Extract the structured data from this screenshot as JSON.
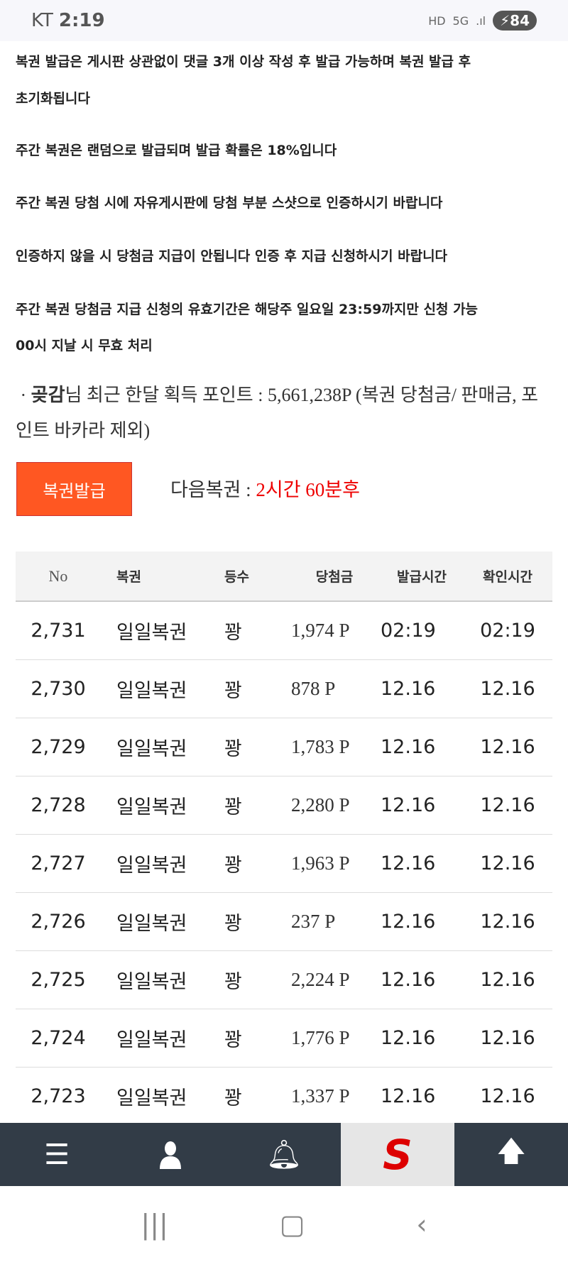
{
  "status_bar": {
    "carrier": "KT",
    "time": "2:19",
    "icons": [
      "hd-icon",
      "5g-icon",
      "signal-icon"
    ],
    "battery": "84"
  },
  "notices": [
    "복권 발급은 게시판 상관없이 댓글 3개 이상 작성 후 발급 가능하며 복권 발급 후",
    "초기화됩니다",
    "주간 복권은 랜덤으로 발급되며 발급 확률은 18%입니다",
    "주간 복권 당첨 시에 자유게시판에 당첨 부분 스샷으로 인증하시기 바랍니다",
    "인증하지 않을 시 당첨금 지급이 안됩니다 인증 후 지급 신청하시기 바랍니다",
    "주간 복권 당첨금 지급 신청의 유효기간은 해당주 일요일 23:59까지만 신청 가능",
    "00시 지날 시 무효 처리"
  ],
  "points": {
    "bullet": "·",
    "user": "곶감",
    "suffix": "님 최근 한달 획득 포인트 : 5,661,238P (복권 당첨금/ 판매금, 포인트 바카라 제외)"
  },
  "issue_button": "복권발급",
  "next": {
    "label": "다음복권 : ",
    "value": "2시간 60분후"
  },
  "table": {
    "headers": [
      "No",
      "복권",
      "등수",
      "당첨금",
      "발급시간",
      "확인시간"
    ],
    "rows": [
      [
        "2,731",
        "일일복권",
        "꽝",
        "1,974 P",
        "02:19",
        "02:19"
      ],
      [
        "2,730",
        "일일복권",
        "꽝",
        "878 P",
        "12.16",
        "12.16"
      ],
      [
        "2,729",
        "일일복권",
        "꽝",
        "1,783 P",
        "12.16",
        "12.16"
      ],
      [
        "2,728",
        "일일복권",
        "꽝",
        "2,280 P",
        "12.16",
        "12.16"
      ],
      [
        "2,727",
        "일일복권",
        "꽝",
        "1,963 P",
        "12.16",
        "12.16"
      ],
      [
        "2,726",
        "일일복권",
        "꽝",
        "237 P",
        "12.16",
        "12.16"
      ],
      [
        "2,725",
        "일일복권",
        "꽝",
        "2,224 P",
        "12.16",
        "12.16"
      ],
      [
        "2,724",
        "일일복권",
        "꽝",
        "1,776 P",
        "12.16",
        "12.16"
      ],
      [
        "2,723",
        "일일복권",
        "꽝",
        "1,337 P",
        "12.16",
        "12.16"
      ]
    ]
  },
  "bottom_nav": [
    "menu-icon",
    "user-icon",
    "bell-icon",
    "site-logo",
    "arrow-up-icon"
  ],
  "logo_text": "S",
  "colors": {
    "accent": "#ff5722",
    "nav": "#323c47",
    "highlight": "#e00000"
  }
}
